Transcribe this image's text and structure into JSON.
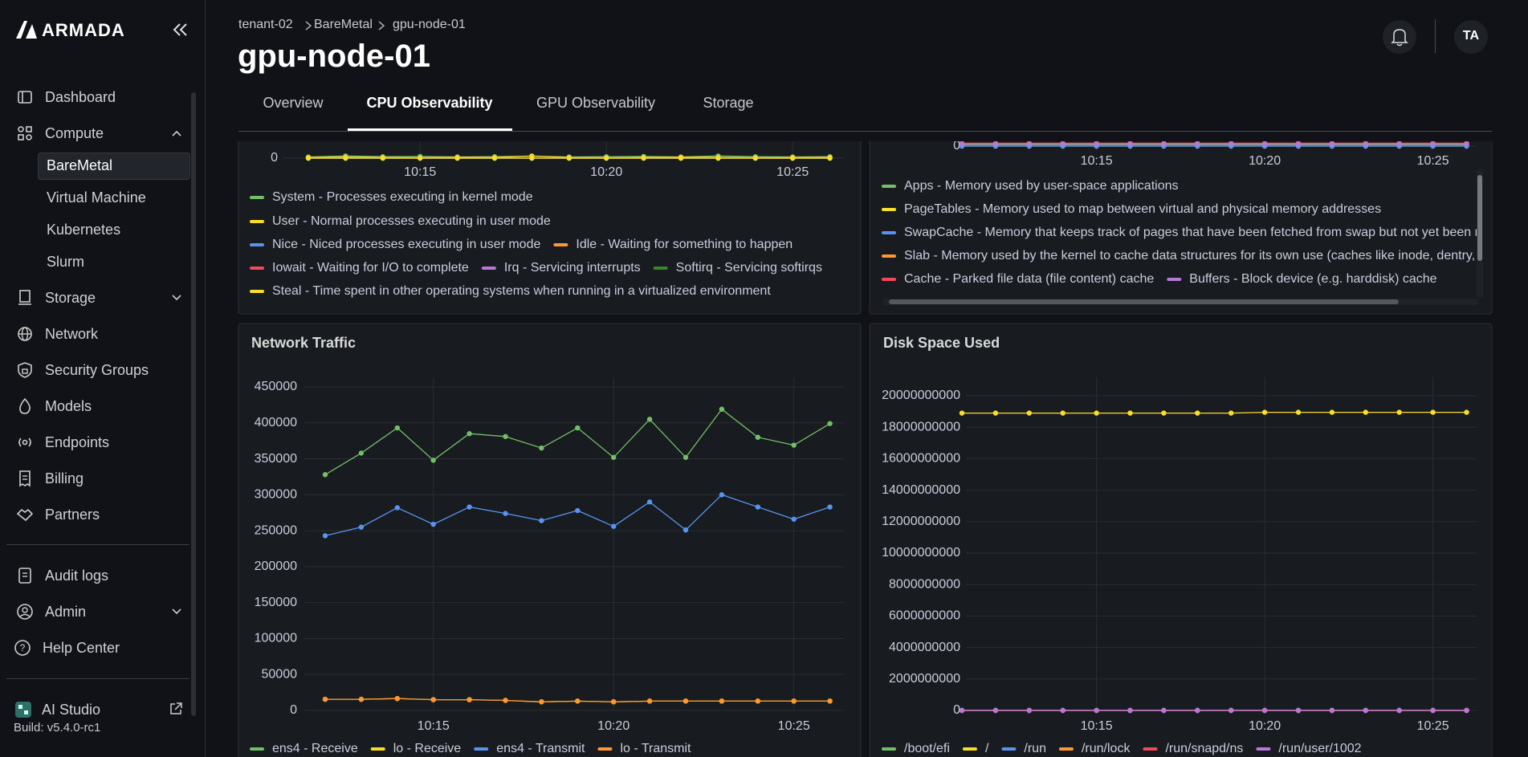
{
  "sidebar": {
    "brand": "ARMADA",
    "nav": [
      "Dashboard",
      "Compute",
      "BareMetal",
      "Virtual Machine",
      "Kubernetes",
      "Slurm",
      "Storage",
      "Network",
      "Security Groups",
      "Models",
      "Endpoints",
      "Billing",
      "Partners"
    ],
    "footer_nav": [
      "Audit logs",
      "Admin",
      "Help Center"
    ],
    "ai_studio": "AI Studio",
    "build": "Build: v5.4.0-rc1"
  },
  "breadcrumb": [
    "tenant-02",
    "BareMetal",
    "gpu-node-01"
  ],
  "page_title": "gpu-node-01",
  "avatar": "TA",
  "tabs": [
    "Overview",
    "CPU Observability",
    "GPU Observability",
    "Storage"
  ],
  "chart_data": [
    {
      "type": "line",
      "grid": true,
      "x": [
        "10:12",
        "10:13",
        "10:14",
        "10:15",
        "10:16",
        "10:17",
        "10:18",
        "10:19",
        "10:20",
        "10:21",
        "10:22",
        "10:23",
        "10:24",
        "10:25",
        "10:26"
      ],
      "xticks": [
        "10:15",
        "10:20",
        "10:25"
      ],
      "ylim": [
        0,
        100
      ],
      "yticks": [
        0
      ],
      "series": [
        {
          "name": "System - Processes executing in kernel mode",
          "color": "#73bf69",
          "values": [
            0.5,
            0.9,
            0.6,
            0.7,
            0.5,
            0.6,
            0.8,
            0.5,
            0.6,
            0.7,
            0.5,
            0.9,
            0.6,
            0.5,
            0.6
          ]
        },
        {
          "name": "User - Normal processes executing in user mode",
          "color": "#fade2a",
          "values": [
            0.3,
            0.4,
            0.3,
            0.2,
            0.4,
            0.3,
            0.9,
            0.3,
            0.2,
            0.3,
            0.4,
            0.3,
            0.2,
            0.3,
            0.3
          ]
        },
        {
          "name": "Nice - Niced processes executing in user mode",
          "color": "#5794f2",
          "values": [
            0,
            0,
            0,
            0,
            0,
            0,
            0,
            0,
            0,
            0,
            0,
            0,
            0,
            0,
            0
          ]
        },
        {
          "name": "Idle - Waiting for something to happen",
          "color": "#ff9830",
          "values": [
            0,
            0,
            0,
            0,
            0,
            0,
            0,
            0,
            0,
            0,
            0,
            0,
            0,
            0,
            0
          ]
        },
        {
          "name": "Iowait - Waiting for I/O to complete",
          "color": "#f2495c",
          "values": [
            0,
            0,
            0,
            0,
            0,
            0,
            0,
            0,
            0,
            0,
            0,
            0,
            0,
            0,
            0
          ]
        },
        {
          "name": "Irq - Servicing interrupts",
          "color": "#b877d9",
          "values": [
            0,
            0,
            0,
            0,
            0,
            0,
            0,
            0,
            0,
            0,
            0,
            0,
            0,
            0,
            0
          ]
        },
        {
          "name": "Softirq - Servicing softirqs",
          "color": "#37872d",
          "values": [
            0,
            0,
            0,
            0,
            0,
            0,
            0,
            0,
            0,
            0,
            0,
            0,
            0,
            0,
            0
          ]
        },
        {
          "name": "Steal - Time spent in other operating systems when running in a virtualized environment",
          "color": "#fade2a",
          "values": [
            0,
            0,
            0,
            0,
            0,
            0,
            0,
            0,
            0,
            0,
            0,
            0,
            0,
            0,
            0
          ]
        }
      ]
    },
    {
      "type": "line",
      "grid": true,
      "x": [
        "10:11",
        "10:12",
        "10:13",
        "10:14",
        "10:15",
        "10:16",
        "10:17",
        "10:18",
        "10:19",
        "10:20",
        "10:21",
        "10:22",
        "10:23",
        "10:24",
        "10:25",
        "10:26"
      ],
      "xticks": [
        "10:15",
        "10:20",
        "10:25"
      ],
      "ylim": [
        0,
        16000000000
      ],
      "yticks": [
        0
      ],
      "series": [
        {
          "name": "Apps - Memory used by user-space applications",
          "color": "#73bf69",
          "values": [
            100000000,
            100000000,
            100000000,
            100000000,
            100000000,
            100000000,
            100000000,
            100000000,
            100000000,
            100000000,
            100000000,
            100000000,
            100000000,
            100000000,
            100000000,
            100000000
          ]
        },
        {
          "name": "PageTables - Memory used to map between virtual and physical memory addresses",
          "color": "#fade2a",
          "values": [
            0,
            0,
            0,
            0,
            0,
            0,
            0,
            0,
            0,
            0,
            0,
            0,
            0,
            0,
            0,
            0
          ]
        },
        {
          "name": "SwapCache - Memory that keeps track of pages that have been fetched from swap but not yet been modified",
          "color": "#5794f2",
          "values": [
            0,
            0,
            0,
            0,
            0,
            0,
            0,
            0,
            0,
            0,
            0,
            0,
            0,
            0,
            0,
            0
          ]
        },
        {
          "name": "Slab - Memory used by the kernel to cache data structures for its own use (caches like inode, dentry, etc)",
          "color": "#ff9830",
          "values": [
            200000000,
            200000000,
            200000000,
            200000000,
            200000000,
            200000000,
            200000000,
            200000000,
            200000000,
            200000000,
            200000000,
            200000000,
            200000000,
            200000000,
            200000000,
            200000000
          ]
        },
        {
          "name": "Cache - Parked file data (file content) cache",
          "color": "#f2495c",
          "values": [
            200000000,
            200000000,
            200000000,
            200000000,
            200000000,
            200000000,
            200000000,
            200000000,
            200000000,
            200000000,
            200000000,
            200000000,
            200000000,
            200000000,
            200000000,
            200000000
          ]
        },
        {
          "name": "Buffers - Block device (e.g. harddisk) cache",
          "color": "#b877d9",
          "values": [
            150000000,
            150000000,
            150000000,
            150000000,
            150000000,
            150000000,
            150000000,
            150000000,
            150000000,
            150000000,
            150000000,
            150000000,
            150000000,
            150000000,
            150000000,
            150000000
          ]
        }
      ]
    },
    {
      "type": "line",
      "grid": true,
      "title": "Network Traffic",
      "x": [
        "10:12",
        "10:13",
        "10:14",
        "10:15",
        "10:16",
        "10:17",
        "10:18",
        "10:19",
        "10:20",
        "10:21",
        "10:22",
        "10:23",
        "10:24",
        "10:25",
        "10:26"
      ],
      "xticks": [
        "10:15",
        "10:20",
        "10:25"
      ],
      "ylim": [
        0,
        450000
      ],
      "yticks": [
        0,
        50000,
        100000,
        150000,
        200000,
        250000,
        300000,
        350000,
        400000,
        450000
      ],
      "series": [
        {
          "name": "ens4 - Receive",
          "color": "#73bf69",
          "values": [
            328000,
            358000,
            393000,
            348000,
            385000,
            381000,
            365000,
            393000,
            352000,
            405000,
            352000,
            419000,
            380000,
            369000,
            399000
          ]
        },
        {
          "name": "lo - Receive",
          "color": "#fade2a",
          "values": [
            15500,
            15500,
            16500,
            15000,
            15000,
            14000,
            12000,
            13000,
            12000,
            13000,
            13000,
            13000,
            13000,
            13000,
            13000
          ]
        },
        {
          "name": "ens4 - Transmit",
          "color": "#5794f2",
          "values": [
            243000,
            255000,
            282000,
            259000,
            283000,
            274000,
            264000,
            278000,
            256000,
            290000,
            251000,
            300000,
            283000,
            266000,
            283000
          ]
        },
        {
          "name": "lo - Transmit",
          "color": "#ff9830",
          "values": [
            15500,
            15500,
            16500,
            15000,
            15000,
            14000,
            12000,
            13000,
            12000,
            13000,
            13000,
            13000,
            13000,
            13000,
            13000
          ]
        }
      ]
    },
    {
      "type": "line",
      "grid": true,
      "title": "Disk Space Used",
      "x": [
        "10:11",
        "10:12",
        "10:13",
        "10:14",
        "10:15",
        "10:16",
        "10:17",
        "10:18",
        "10:19",
        "10:20",
        "10:21",
        "10:22",
        "10:23",
        "10:24",
        "10:25",
        "10:26"
      ],
      "xticks": [
        "10:15",
        "10:20",
        "10:25"
      ],
      "ylim": [
        0,
        20000000000
      ],
      "yticks": [
        0,
        2000000000,
        4000000000,
        6000000000,
        8000000000,
        10000000000,
        12000000000,
        14000000000,
        16000000000,
        18000000000,
        20000000000
      ],
      "series": [
        {
          "name": "/boot/efi",
          "color": "#73bf69",
          "values": [
            6000000,
            6000000,
            6000000,
            6000000,
            6000000,
            6000000,
            6000000,
            6000000,
            6000000,
            6000000,
            6000000,
            6000000,
            6000000,
            6000000,
            6000000,
            6000000
          ]
        },
        {
          "name": "/",
          "color": "#fade2a",
          "values": [
            18900000000,
            18900000000,
            18900000000,
            18900000000,
            18900000000,
            18900000000,
            18900000000,
            18900000000,
            18900000000,
            18950000000,
            18950000000,
            18950000000,
            18950000000,
            18950000000,
            18950000000,
            18950000000
          ]
        },
        {
          "name": "/run",
          "color": "#5794f2",
          "values": [
            0,
            0,
            0,
            0,
            0,
            0,
            0,
            0,
            0,
            0,
            0,
            0,
            0,
            0,
            0,
            0
          ]
        },
        {
          "name": "/run/lock",
          "color": "#ff9830",
          "values": [
            0,
            0,
            0,
            0,
            0,
            0,
            0,
            0,
            0,
            0,
            0,
            0,
            0,
            0,
            0,
            0
          ]
        },
        {
          "name": "/run/snapd/ns",
          "color": "#f2495c",
          "values": [
            0,
            0,
            0,
            0,
            0,
            0,
            0,
            0,
            0,
            0,
            0,
            0,
            0,
            0,
            0,
            0
          ]
        },
        {
          "name": "/run/user/1002",
          "color": "#b877d9",
          "values": [
            0,
            0,
            0,
            0,
            0,
            0,
            0,
            0,
            0,
            0,
            0,
            0,
            0,
            0,
            0,
            0
          ]
        }
      ]
    }
  ]
}
